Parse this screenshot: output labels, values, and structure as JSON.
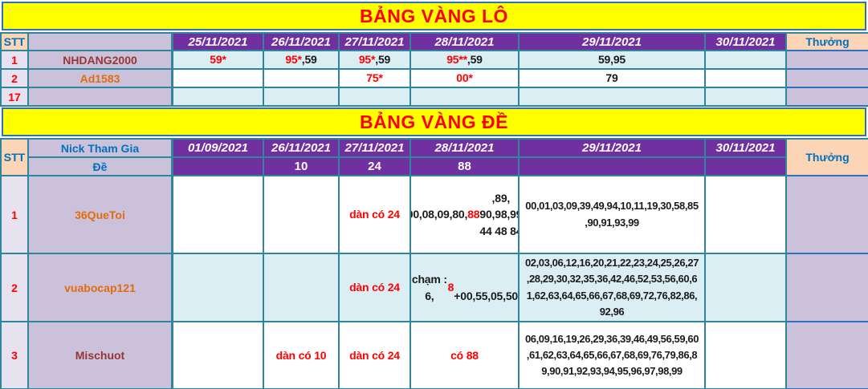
{
  "colors": {
    "banner_bg": "#FFFF00",
    "banner_text": "#FF0000",
    "header_purple": "#71309F",
    "peach": "#FBD5B5",
    "lavender": "#CCC1DB",
    "lavender_light": "#E7E2F0",
    "light_blue_row": "#DBEEF4",
    "teal_border": "#2E859C",
    "blue_border": "#2E6FC0",
    "blue_text": "#0070C0",
    "red": "#FF0000",
    "dark": "#1A1A1A",
    "orange": "#E26B0A",
    "brown": "#963634"
  },
  "banner_lo": {
    "title": "BẢNG VÀNG LÔ"
  },
  "banner_de": {
    "title": "BẢNG VÀNG ĐỀ"
  },
  "table_lo": {
    "stt_header": "STT",
    "name_header": "",
    "dates": [
      "25/11/2021",
      "26/11/2021",
      "27/11/2021",
      "28/11/2021",
      "29/11/2021",
      "30/11/2021"
    ],
    "reward_header": "Thưởng",
    "rows": [
      {
        "stt": "1",
        "name": "NHDANG2000",
        "name_color": "#963634",
        "values": [
          [
            {
              "t": "59*",
              "c": "#FF0000"
            }
          ],
          [
            {
              "t": "95*",
              "c": "#FF0000"
            },
            {
              "t": ",59",
              "c": "#1A1A1A"
            }
          ],
          [
            {
              "t": "95*",
              "c": "#FF0000"
            },
            {
              "t": ",59",
              "c": "#1A1A1A"
            }
          ],
          [
            {
              "t": "95**",
              "c": "#FF0000"
            },
            {
              "t": ",59",
              "c": "#1A1A1A"
            }
          ],
          [
            {
              "t": "59,95",
              "c": "#1A1A1A"
            }
          ],
          []
        ]
      },
      {
        "stt": "2",
        "name": "Ad1583",
        "name_color": "#E26B0A",
        "values": [
          [],
          [],
          [
            {
              "t": "75*",
              "c": "#FF0000"
            }
          ],
          [
            {
              "t": "00*",
              "c": "#FF0000"
            }
          ],
          [
            {
              "t": "79",
              "c": "#1A1A1A"
            }
          ],
          []
        ]
      },
      {
        "stt": "17",
        "name": "",
        "name_color": "#963634",
        "values": [
          [],
          [],
          [],
          [],
          [],
          []
        ]
      }
    ]
  },
  "table_de": {
    "stt_header": "STT",
    "name_header_top": "Nick Tham Gia",
    "name_header_bottom": "Đề",
    "dates": [
      "01/09/2021",
      "26/11/2021",
      "27/11/2021",
      "28/11/2021",
      "29/11/2021",
      "30/11/2021"
    ],
    "sub_values": [
      "",
      "10",
      "24",
      "88",
      "",
      ""
    ],
    "reward_header": "Thưởng",
    "rows": [
      {
        "stt": "1",
        "name": "36QueToi",
        "name_color": "#E26B0A",
        "values": [
          [],
          [],
          [
            {
              "t": "dàn có 24",
              "c": "#FF0000"
            }
          ],
          [
            {
              "t": "00,08,09,80,",
              "c": "#1A1A1A"
            },
            {
              "t": "88",
              "c": "#FF0000"
            },
            {
              "t": ",89,\n90,98,99 44 48 84",
              "c": "#1A1A1A"
            }
          ],
          [
            {
              "t": "00,01,03,09,39,49,94,10,11,19,30,58,85\n,90,91,93,99",
              "c": "#1A1A1A"
            }
          ],
          []
        ]
      },
      {
        "stt": "2",
        "name": "vuabocap121",
        "name_color": "#E26B0A",
        "values": [
          [],
          [],
          [
            {
              "t": "dàn có 24",
              "c": "#FF0000"
            }
          ],
          [
            {
              "t": "chạm : 6,",
              "c": "#1A1A1A"
            },
            {
              "t": "8",
              "c": "#FF0000"
            },
            {
              "t": "\n+00,55,05,50",
              "c": "#1A1A1A"
            }
          ],
          [
            {
              "t": "02,03,06,12,16,20,21,22,23,24,25,26,27\n,28,29,30,32,35,36,42,46,52,53,56,60,6\n1,62,63,64,65,66,67,68,69,72,76,82,86,\n92,96",
              "c": "#1A1A1A"
            }
          ],
          []
        ]
      },
      {
        "stt": "3",
        "name": "Mischuot",
        "name_color": "#963634",
        "values": [
          [],
          [
            {
              "t": "dàn có 10",
              "c": "#FF0000"
            }
          ],
          [
            {
              "t": "dàn có 24",
              "c": "#FF0000"
            }
          ],
          [
            {
              "t": "có 88",
              "c": "#FF0000"
            }
          ],
          [
            {
              "t": "06,09,16,19,26,29,36,39,46,49,56,59,60\n,61,62,63,64,65,66,67,68,69,76,79,86,8\n9,90,91,92,93,94,95,96,97,98,99",
              "c": "#1A1A1A"
            }
          ],
          []
        ]
      }
    ]
  }
}
